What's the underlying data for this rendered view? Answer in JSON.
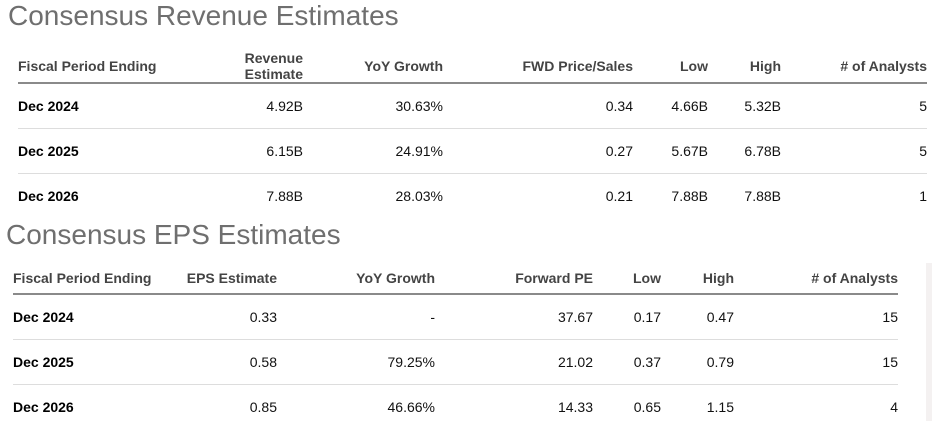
{
  "revenue": {
    "title": "Consensus Revenue Estimates",
    "headers": [
      "Fiscal Period Ending",
      "Revenue Estimate",
      "YoY Growth",
      "FWD Price/Sales",
      "Low",
      "High",
      "# of Analysts"
    ],
    "rows": [
      [
        "Dec 2024",
        "4.92B",
        "30.63%",
        "0.34",
        "4.66B",
        "5.32B",
        "5"
      ],
      [
        "Dec 2025",
        "6.15B",
        "24.91%",
        "0.27",
        "5.67B",
        "6.78B",
        "5"
      ],
      [
        "Dec 2026",
        "7.88B",
        "28.03%",
        "0.21",
        "7.88B",
        "7.88B",
        "1"
      ]
    ]
  },
  "eps": {
    "title": "Consensus EPS Estimates",
    "headers": [
      "Fiscal Period Ending",
      "EPS Estimate",
      "YoY Growth",
      "Forward PE",
      "Low",
      "High",
      "# of Analysts"
    ],
    "rows": [
      [
        "Dec 2024",
        "0.33",
        "-",
        "37.67",
        "0.17",
        "0.47",
        "15"
      ],
      [
        "Dec 2025",
        "0.58",
        "79.25%",
        "21.02",
        "0.37",
        "0.79",
        "15"
      ],
      [
        "Dec 2026",
        "0.85",
        "46.66%",
        "14.33",
        "0.65",
        "1.15",
        "4"
      ]
    ]
  }
}
